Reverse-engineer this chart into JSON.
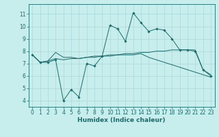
{
  "xlabel": "Humidex (Indice chaleur)",
  "ylabel": "",
  "bg_color": "#c8eded",
  "grid_color": "#a8d8d8",
  "line_color": "#1a6b6b",
  "x_ticks": [
    0,
    1,
    2,
    3,
    4,
    5,
    6,
    7,
    8,
    9,
    10,
    11,
    12,
    13,
    14,
    15,
    16,
    17,
    18,
    19,
    20,
    21,
    22,
    23
  ],
  "y_ticks": [
    4,
    5,
    6,
    7,
    8,
    9,
    10,
    11
  ],
  "ylim": [
    3.5,
    11.8
  ],
  "xlim": [
    -0.5,
    23.5
  ],
  "line1_x": [
    0,
    1,
    2,
    3,
    4,
    5,
    6,
    7,
    8,
    9,
    10,
    11,
    12,
    13,
    14,
    15,
    16,
    17,
    18,
    19,
    20,
    21,
    22,
    23
  ],
  "line1_y": [
    7.7,
    7.1,
    7.1,
    7.3,
    4.0,
    4.9,
    4.3,
    7.0,
    6.8,
    7.6,
    10.1,
    9.8,
    8.8,
    11.1,
    10.3,
    9.6,
    9.8,
    9.7,
    9.0,
    8.1,
    8.1,
    8.0,
    6.5,
    6.0
  ],
  "line2_x": [
    0,
    1,
    2,
    3,
    4,
    5,
    6,
    7,
    8,
    9,
    10,
    11,
    12,
    13,
    14,
    15,
    16,
    17,
    18,
    19,
    20,
    21,
    22,
    23
  ],
  "line2_y": [
    7.7,
    7.1,
    7.2,
    7.9,
    7.5,
    7.5,
    7.4,
    7.5,
    7.6,
    7.6,
    7.7,
    7.7,
    7.8,
    7.8,
    7.9,
    7.9,
    8.0,
    8.0,
    8.1,
    8.1,
    8.1,
    8.1,
    6.5,
    6.1
  ],
  "line3_x": [
    0,
    1,
    2,
    3,
    4,
    5,
    6,
    7,
    8,
    9,
    10,
    11,
    12,
    13,
    14,
    15,
    16,
    17,
    18,
    19,
    20,
    21,
    22,
    23
  ],
  "line3_y": [
    7.7,
    7.1,
    7.2,
    7.4,
    7.3,
    7.4,
    7.4,
    7.5,
    7.5,
    7.6,
    7.6,
    7.7,
    7.7,
    7.7,
    7.8,
    7.5,
    7.3,
    7.1,
    6.9,
    6.7,
    6.5,
    6.3,
    6.1,
    5.9
  ],
  "tick_fontsize": 5.5,
  "label_fontsize": 6.5
}
